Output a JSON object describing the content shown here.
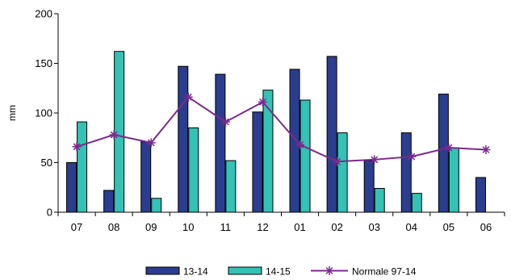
{
  "chart_data": {
    "type": "bar",
    "title": "",
    "xlabel": "",
    "ylabel": "mm",
    "ylim": [
      0,
      200
    ],
    "yticks": [
      0,
      50,
      100,
      150,
      200
    ],
    "grid": false,
    "legend_position": "bottom",
    "categories": [
      "07",
      "08",
      "09",
      "10",
      "11",
      "12",
      "01",
      "02",
      "03",
      "04",
      "05",
      "06"
    ],
    "series": [
      {
        "name": "13-14",
        "type": "bar",
        "color": "#2B3D8F",
        "values": [
          50,
          22,
          71,
          147,
          139,
          101,
          144,
          157,
          52,
          80,
          119,
          35
        ]
      },
      {
        "name": "14-15",
        "type": "bar",
        "color": "#33C2B5",
        "values": [
          91,
          162,
          14,
          85,
          52,
          123,
          113,
          80,
          24,
          19,
          65,
          null
        ]
      },
      {
        "name": "Normale 97-14",
        "type": "line",
        "color": "#7B2A8C",
        "values": [
          66,
          78,
          70,
          116,
          91,
          111,
          68,
          51,
          53,
          56,
          65,
          63
        ]
      }
    ]
  }
}
